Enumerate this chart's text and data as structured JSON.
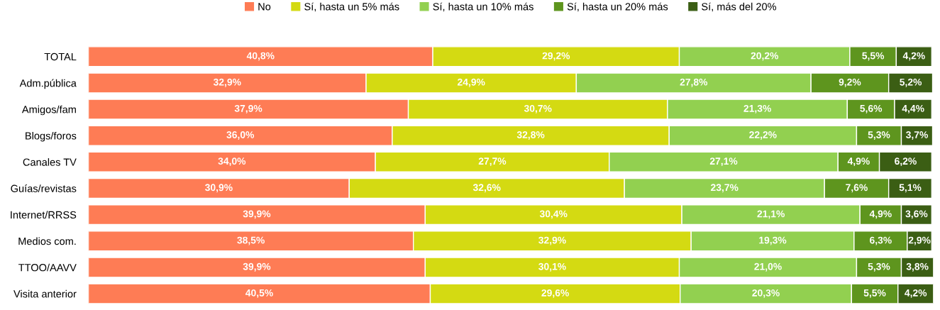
{
  "chart_data": {
    "type": "bar",
    "orientation": "horizontal",
    "stacked": true,
    "legend": "top",
    "grid": false,
    "tick_labels": "y",
    "categories": [
      "TOTAL",
      "Adm.pública",
      "Amigos/fam",
      "Blogs/foros",
      "Canales TV",
      "Guías/revistas",
      "Internet/RRSS",
      "Medios com.",
      "TTOO/AAVV",
      "Visita anterior"
    ],
    "series": [
      {
        "name": "No",
        "color": "#fe7c55",
        "values": [
          40.8,
          32.9,
          37.9,
          36.0,
          34.0,
          30.9,
          39.9,
          38.5,
          39.9,
          40.5
        ],
        "value_labels": [
          "40,8%",
          "32,9%",
          "37,9%",
          "36,0%",
          "34,0%",
          "30,9%",
          "39,9%",
          "38,5%",
          "39,9%",
          "40,5%"
        ]
      },
      {
        "name": "Sí, hasta un 5% más",
        "color": "#d4da12",
        "values": [
          29.2,
          24.9,
          30.7,
          32.8,
          27.7,
          32.6,
          30.4,
          32.9,
          30.1,
          29.6
        ],
        "value_labels": [
          "29,2%",
          "24,9%",
          "30,7%",
          "32,8%",
          "27,7%",
          "32,6%",
          "30,4%",
          "32,9%",
          "30,1%",
          "29,6%"
        ]
      },
      {
        "name": "Sí, hasta un 10% más",
        "color": "#92d050",
        "values": [
          20.2,
          27.8,
          21.3,
          22.2,
          27.1,
          23.7,
          21.1,
          19.3,
          21.0,
          20.3
        ],
        "value_labels": [
          "20,2%",
          "27,8%",
          "21,3%",
          "22,2%",
          "27,1%",
          "23,7%",
          "21,1%",
          "19,3%",
          "21,0%",
          "20,3%"
        ]
      },
      {
        "name": "Sí, hasta un 20% más",
        "color": "#5e951e",
        "values": [
          5.5,
          9.2,
          5.6,
          5.3,
          4.9,
          7.6,
          4.9,
          6.3,
          5.3,
          5.5
        ],
        "value_labels": [
          "5,5%",
          "9,2%",
          "5,6%",
          "5,3%",
          "4,9%",
          "7,6%",
          "4,9%",
          "6,3%",
          "5,3%",
          "5,5%"
        ]
      },
      {
        "name": "Sí, más del 20%",
        "color": "#3b5e14",
        "values": [
          4.2,
          5.2,
          4.4,
          3.7,
          6.2,
          5.1,
          3.6,
          2.9,
          3.8,
          4.2
        ],
        "value_labels": [
          "4,2%",
          "5,2%",
          "4,4%",
          "3,7%",
          "6,2%",
          "5,1%",
          "3,6%",
          "2,9%",
          "3,8%",
          "4,2%"
        ]
      }
    ]
  }
}
